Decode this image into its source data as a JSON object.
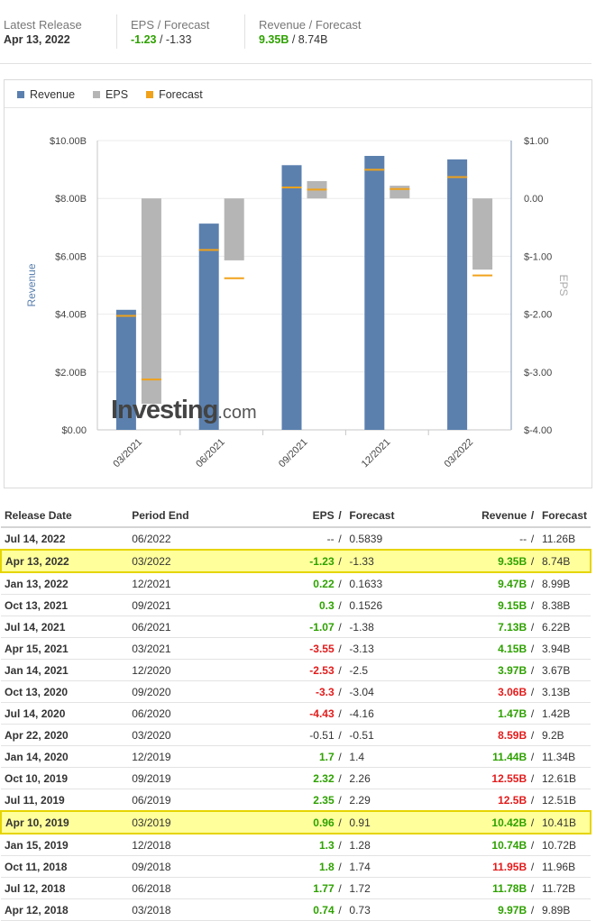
{
  "summary": {
    "latest_release_label": "Latest Release",
    "latest_release_value": "Apr 13, 2022",
    "eps_label": "EPS / Forecast",
    "eps_actual": "-1.23",
    "eps_forecast": "-1.33",
    "revenue_label": "Revenue / Forecast",
    "revenue_actual": "9.35B",
    "revenue_forecast": "8.74B",
    "slash": " / "
  },
  "legend": {
    "revenue": "Revenue",
    "eps": "EPS",
    "forecast": "Forecast"
  },
  "colors": {
    "revenue": "#5b80ae",
    "eps": "#b5b5b5",
    "forecast": "#f0a21b",
    "positive": "#2ea100",
    "negative": "#e31b1b"
  },
  "logo": {
    "main": "Investing",
    "suffix": ".com"
  },
  "chart_data": {
    "type": "bar",
    "categories": [
      "03/2021",
      "06/2021",
      "09/2021",
      "12/2021",
      "03/2022"
    ],
    "series": [
      {
        "name": "Revenue",
        "axis": "left",
        "values": [
          4.15,
          7.13,
          9.15,
          9.47,
          9.35
        ],
        "forecast": [
          3.94,
          6.22,
          8.38,
          8.99,
          8.74
        ]
      },
      {
        "name": "EPS",
        "axis": "right",
        "values": [
          -3.55,
          -1.07,
          0.3,
          0.22,
          -1.23
        ],
        "forecast": [
          -3.13,
          -1.38,
          0.1526,
          0.1633,
          -1.33
        ]
      }
    ],
    "left_axis": {
      "label": "Revenue",
      "ylim": [
        0,
        10
      ],
      "ticks": [
        "$0.00",
        "$2.00B",
        "$4.00B",
        "$6.00B",
        "$8.00B",
        "$10.00B"
      ]
    },
    "right_axis": {
      "label": "EPS",
      "ylim": [
        -4,
        1
      ],
      "ticks": [
        "$-4.00",
        "$-3.00",
        "$-2.00",
        "$-1.00",
        "0.00",
        "$1.00"
      ]
    },
    "grid": true,
    "legend_position": "top-left"
  },
  "table": {
    "headers": {
      "release_date": "Release Date",
      "period_end": "Period End",
      "eps": "EPS",
      "forecast": "Forecast",
      "revenue": "Revenue",
      "slash": "/"
    },
    "rows": [
      {
        "date": "Jul 14, 2022",
        "period": "06/2022",
        "eps": "--",
        "eps_fc": "0.5839",
        "rev": "--",
        "rev_fc": "11.26B",
        "eps_c": "na",
        "rev_c": "na",
        "hl": false
      },
      {
        "date": "Apr 13, 2022",
        "period": "03/2022",
        "eps": "-1.23",
        "eps_fc": "-1.33",
        "rev": "9.35B",
        "rev_fc": "8.74B",
        "eps_c": "pos",
        "rev_c": "pos",
        "hl": true
      },
      {
        "date": "Jan 13, 2022",
        "period": "12/2021",
        "eps": "0.22",
        "eps_fc": "0.1633",
        "rev": "9.47B",
        "rev_fc": "8.99B",
        "eps_c": "pos",
        "rev_c": "pos",
        "hl": false
      },
      {
        "date": "Oct 13, 2021",
        "period": "09/2021",
        "eps": "0.3",
        "eps_fc": "0.1526",
        "rev": "9.15B",
        "rev_fc": "8.38B",
        "eps_c": "pos",
        "rev_c": "pos",
        "hl": false
      },
      {
        "date": "Jul 14, 2021",
        "period": "06/2021",
        "eps": "-1.07",
        "eps_fc": "-1.38",
        "rev": "7.13B",
        "rev_fc": "6.22B",
        "eps_c": "pos",
        "rev_c": "pos",
        "hl": false
      },
      {
        "date": "Apr 15, 2021",
        "period": "03/2021",
        "eps": "-3.55",
        "eps_fc": "-3.13",
        "rev": "4.15B",
        "rev_fc": "3.94B",
        "eps_c": "neg",
        "rev_c": "pos",
        "hl": false
      },
      {
        "date": "Jan 14, 2021",
        "period": "12/2020",
        "eps": "-2.53",
        "eps_fc": "-2.5",
        "rev": "3.97B",
        "rev_fc": "3.67B",
        "eps_c": "neg",
        "rev_c": "pos",
        "hl": false
      },
      {
        "date": "Oct 13, 2020",
        "period": "09/2020",
        "eps": "-3.3",
        "eps_fc": "-3.04",
        "rev": "3.06B",
        "rev_fc": "3.13B",
        "eps_c": "neg",
        "rev_c": "neg",
        "hl": false
      },
      {
        "date": "Jul 14, 2020",
        "period": "06/2020",
        "eps": "-4.43",
        "eps_fc": "-4.16",
        "rev": "1.47B",
        "rev_fc": "1.42B",
        "eps_c": "neg",
        "rev_c": "pos",
        "hl": false
      },
      {
        "date": "Apr 22, 2020",
        "period": "03/2020",
        "eps": "-0.51",
        "eps_fc": "-0.51",
        "rev": "8.59B",
        "rev_fc": "9.2B",
        "eps_c": "na",
        "rev_c": "neg",
        "hl": false
      },
      {
        "date": "Jan 14, 2020",
        "period": "12/2019",
        "eps": "1.7",
        "eps_fc": "1.4",
        "rev": "11.44B",
        "rev_fc": "11.34B",
        "eps_c": "pos",
        "rev_c": "pos",
        "hl": false
      },
      {
        "date": "Oct 10, 2019",
        "period": "09/2019",
        "eps": "2.32",
        "eps_fc": "2.26",
        "rev": "12.55B",
        "rev_fc": "12.61B",
        "eps_c": "pos",
        "rev_c": "neg",
        "hl": false
      },
      {
        "date": "Jul 11, 2019",
        "period": "06/2019",
        "eps": "2.35",
        "eps_fc": "2.29",
        "rev": "12.5B",
        "rev_fc": "12.51B",
        "eps_c": "pos",
        "rev_c": "neg",
        "hl": false
      },
      {
        "date": "Apr 10, 2019",
        "period": "03/2019",
        "eps": "0.96",
        "eps_fc": "0.91",
        "rev": "10.42B",
        "rev_fc": "10.41B",
        "eps_c": "pos",
        "rev_c": "pos",
        "hl": true
      },
      {
        "date": "Jan 15, 2019",
        "period": "12/2018",
        "eps": "1.3",
        "eps_fc": "1.28",
        "rev": "10.74B",
        "rev_fc": "10.72B",
        "eps_c": "pos",
        "rev_c": "pos",
        "hl": false
      },
      {
        "date": "Oct 11, 2018",
        "period": "09/2018",
        "eps": "1.8",
        "eps_fc": "1.74",
        "rev": "11.95B",
        "rev_fc": "11.96B",
        "eps_c": "pos",
        "rev_c": "neg",
        "hl": false
      },
      {
        "date": "Jul 12, 2018",
        "period": "06/2018",
        "eps": "1.77",
        "eps_fc": "1.72",
        "rev": "11.78B",
        "rev_fc": "11.72B",
        "eps_c": "pos",
        "rev_c": "pos",
        "hl": false
      },
      {
        "date": "Apr 12, 2018",
        "period": "03/2018",
        "eps": "0.74",
        "eps_fc": "0.73",
        "rev": "9.97B",
        "rev_fc": "9.89B",
        "eps_c": "pos",
        "rev_c": "pos",
        "hl": false
      }
    ]
  }
}
